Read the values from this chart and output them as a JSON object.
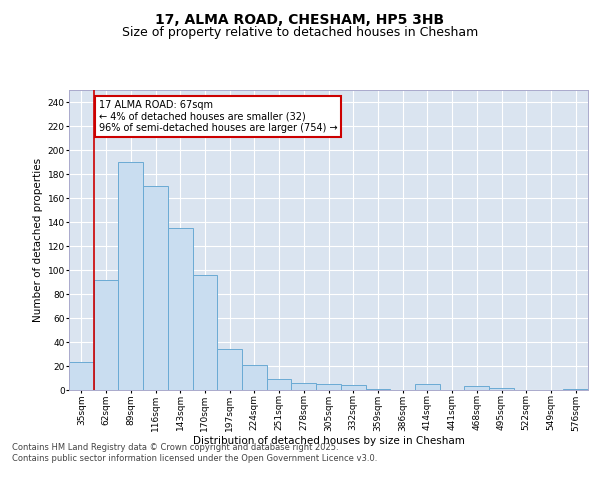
{
  "title1": "17, ALMA ROAD, CHESHAM, HP5 3HB",
  "title2": "Size of property relative to detached houses in Chesham",
  "xlabel": "Distribution of detached houses by size in Chesham",
  "ylabel": "Number of detached properties",
  "categories": [
    "35sqm",
    "62sqm",
    "89sqm",
    "116sqm",
    "143sqm",
    "170sqm",
    "197sqm",
    "224sqm",
    "251sqm",
    "278sqm",
    "305sqm",
    "332sqm",
    "359sqm",
    "386sqm",
    "414sqm",
    "441sqm",
    "468sqm",
    "495sqm",
    "522sqm",
    "549sqm",
    "576sqm"
  ],
  "values": [
    23,
    92,
    190,
    170,
    135,
    96,
    34,
    21,
    9,
    6,
    5,
    4,
    1,
    0,
    5,
    0,
    3,
    2,
    0,
    0,
    1
  ],
  "bar_color": "#c9ddf0",
  "bar_edge_color": "#6aaad4",
  "vline_color": "#cc0000",
  "vline_x": 0.5,
  "annotation_text": "17 ALMA ROAD: 67sqm\n← 4% of detached houses are smaller (32)\n96% of semi-detached houses are larger (754) →",
  "annotation_box_color": "#ffffff",
  "annotation_box_edge": "#cc0000",
  "ylim": [
    0,
    250
  ],
  "yticks": [
    0,
    20,
    40,
    60,
    80,
    100,
    120,
    140,
    160,
    180,
    200,
    220,
    240
  ],
  "footer_text": "Contains HM Land Registry data © Crown copyright and database right 2025.\nContains public sector information licensed under the Open Government Licence v3.0.",
  "bg_color": "#dae4f0",
  "fig_bg_color": "#ffffff",
  "grid_color": "#ffffff",
  "title_fontsize": 10,
  "subtitle_fontsize": 9,
  "axis_label_fontsize": 7.5,
  "tick_fontsize": 6.5,
  "footer_fontsize": 6,
  "annotation_fontsize": 7
}
